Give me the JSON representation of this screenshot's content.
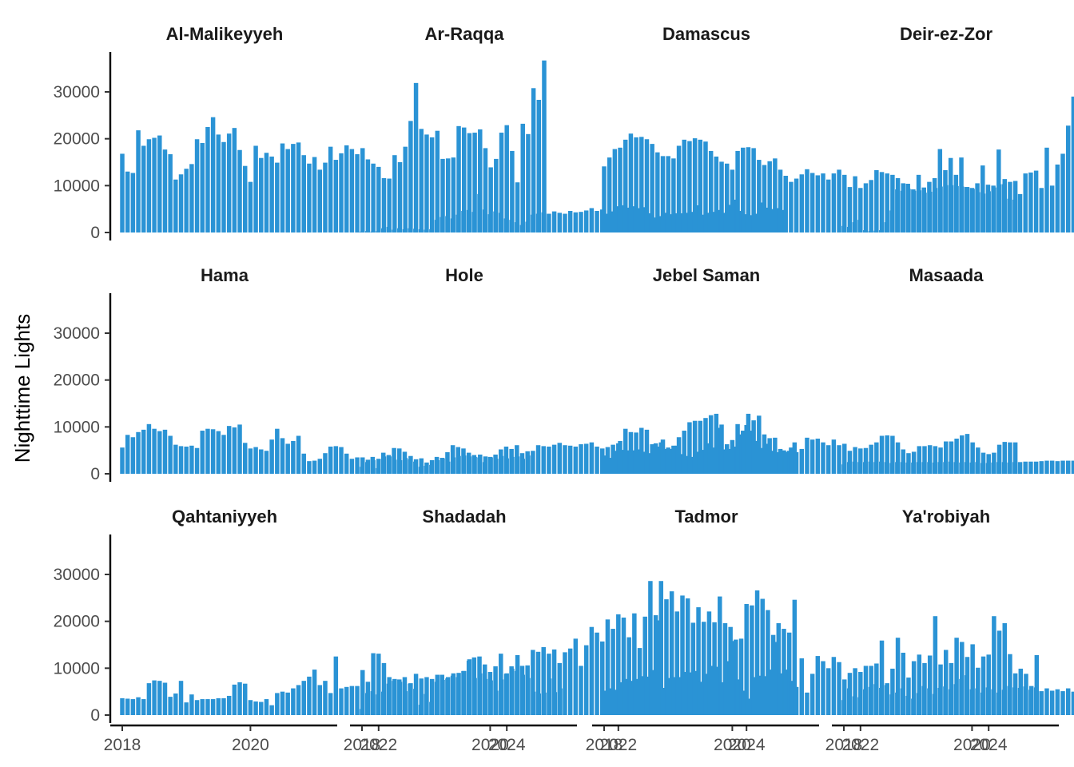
{
  "chart_data": {
    "type": "bar",
    "facet_layout": "4 columns x 3 rows",
    "ylabel": "Nighttime Lights",
    "xlabel": "",
    "x_ticks": [
      "2018",
      "2020",
      "2022",
      "2024"
    ],
    "y_ticks": [
      0,
      10000,
      20000,
      30000
    ],
    "ylim": [
      0,
      38000
    ],
    "x_start": "2018-01",
    "bar_color": "#2a93d5",
    "grid": false,
    "legend": "none",
    "panels": [
      {
        "title": "Al-Malikeyyeh",
        "values": [
          16800,
          13000,
          12700,
          21800,
          18500,
          19900,
          20200,
          20700,
          17700,
          16700,
          11300,
          12400,
          13600,
          14600,
          19900,
          19100,
          22500,
          24600,
          20900,
          19300,
          21100,
          22300,
          17600,
          14200,
          10800,
          18500,
          15900,
          17000,
          16200,
          14900,
          19000,
          17800,
          18900,
          19200,
          16500,
          14700,
          16100,
          13400,
          14900,
          18300,
          15500,
          16900,
          18600,
          17800,
          16700,
          18000,
          15600,
          14700,
          14000,
          11600,
          11500,
          16500,
          15000,
          18300,
          23800,
          31900,
          22100,
          20900,
          20300,
          21700,
          15700,
          15800,
          16000,
          22700,
          22400,
          21200,
          21300,
          22000,
          18000,
          13900,
          15700,
          21300,
          22900,
          17400,
          10700,
          23200,
          21000,
          30800,
          28300,
          36700
        ]
      },
      {
        "title": "Ar-Raqqa",
        "values": [
          200,
          300,
          200,
          300,
          900,
          1200,
          600,
          900,
          700,
          900,
          800,
          700,
          600,
          700,
          2700,
          3300,
          3500,
          3000,
          3800,
          4600,
          4800,
          4400,
          8200,
          4900,
          3900,
          4500,
          4200,
          3000,
          2700,
          2200,
          1600,
          2300,
          3800,
          4000,
          4300,
          4000,
          4500,
          4200,
          4000,
          4600,
          4300,
          4400,
          4700,
          5200,
          4600,
          4900,
          4000,
          4500,
          5600,
          5800,
          5300,
          5600,
          5200,
          5400,
          4100,
          3200,
          3500,
          4200,
          3900,
          4100,
          4100,
          4200,
          4400,
          5800,
          3800,
          4200,
          4400,
          4800,
          4200,
          5900,
          7000,
          4600,
          3900,
          3700,
          4000,
          6400,
          5300,
          5000,
          5200,
          4800
        ]
      },
      {
        "title": "Damascus",
        "values": [
          14100,
          16000,
          17800,
          18100,
          19800,
          21100,
          20300,
          20400,
          19900,
          18900,
          17100,
          16300,
          16300,
          15800,
          18500,
          19800,
          19500,
          20100,
          19800,
          19400,
          17400,
          16200,
          15100,
          14700,
          13400,
          17400,
          18100,
          18200,
          18000,
          15500,
          14400,
          15200,
          15800,
          13400,
          12100,
          10800,
          11500,
          12400,
          13500,
          12700,
          12200,
          12600,
          11300,
          12600,
          13400,
          12300,
          9700,
          12000,
          9500,
          10500,
          11200,
          13300,
          12900,
          12600,
          12300,
          11600,
          10500,
          9300,
          8900,
          9000,
          8500,
          8700,
          9500,
          9800,
          10100,
          10100,
          9900,
          9800,
          9700,
          9300,
          8600,
          8300,
          8800,
          9600,
          10300,
          11400,
          10800,
          11000
        ]
      },
      {
        "title": "Deir-ez-Zor",
        "values": [
          1400,
          1200,
          2200,
          2700,
          500,
          300,
          400,
          500,
          2200,
          4700,
          9200,
          8900,
          10400,
          9200,
          12300,
          9600,
          10800,
          11600,
          17800,
          13300,
          15900,
          12300,
          16000,
          9700,
          9500,
          10500,
          14300,
          10200,
          10000,
          17700,
          10300,
          7200,
          7000,
          8200,
          12600,
          12800,
          13200,
          9500,
          18100,
          10000,
          14500,
          16800,
          22800,
          29000,
          21700,
          19600,
          17800,
          16300,
          19600,
          24400,
          21500,
          14000,
          21600,
          21900,
          21500,
          18600,
          25800,
          21700,
          23300,
          19900,
          17900,
          14700,
          14000,
          14600,
          17200,
          16400,
          18100,
          17300,
          15000,
          14700,
          14600,
          16600,
          12900,
          11800,
          11400,
          16300,
          11200,
          8000,
          17300,
          11500
        ]
      },
      {
        "title": "Hama",
        "values": [
          5600,
          8300,
          7800,
          8900,
          9400,
          10600,
          9600,
          9100,
          9400,
          8100,
          6200,
          5900,
          5800,
          6000,
          5500,
          9200,
          9600,
          9500,
          9100,
          8300,
          10200,
          9900,
          10500,
          6600,
          5400,
          5700,
          5200,
          4900,
          7300,
          9600,
          7600,
          6400,
          7000,
          8100,
          4300,
          2700,
          2800,
          3200,
          4400,
          5800,
          5900,
          5700,
          4300,
          3200,
          3500,
          3500,
          3000,
          2900,
          3200,
          3700,
          3700,
          3000,
          2900,
          3400,
          3800,
          3100,
          3300,
          2400,
          2900,
          2900,
          3300,
          2600,
          3500,
          3800,
          3900,
          3700,
          3600,
          4100,
          3700,
          3500,
          3200,
          3800,
          3300,
          3600,
          3700,
          3200,
          3900
        ]
      },
      {
        "title": "Hole",
        "values": [
          1500,
          2500,
          3600,
          1200,
          4500,
          4000,
          5500,
          5400,
          4700,
          3100,
          2600,
          1500,
          1700,
          1900,
          3600,
          3400,
          4600,
          6100,
          5700,
          5400,
          4500,
          4000,
          3500,
          2500,
          3600,
          4100,
          5200,
          5800,
          5300,
          6100,
          4400,
          4800,
          4900,
          6100,
          5900,
          5800,
          6200,
          6600,
          6100,
          6000,
          5800,
          6300,
          6400,
          6700,
          5800,
          5400,
          5700,
          6200,
          6500,
          5100,
          5000,
          5000,
          5200,
          4700,
          4400,
          6500,
          6700,
          5300,
          5300,
          6000,
          4200,
          3800,
          3600,
          4700,
          5100,
          6500,
          5600,
          9800,
          5200,
          5300,
          5800,
          8400,
          10400,
          9200,
          7000,
          5500,
          6400,
          4900,
          4600,
          5000,
          4900,
          6700
        ]
      },
      {
        "title": "Jebel Saman",
        "values": [
          3900,
          3400,
          4900,
          7000,
          9600,
          8900,
          8800,
          9800,
          9400,
          6300,
          5800,
          7300,
          5600,
          6000,
          7800,
          9200,
          11000,
          11300,
          11300,
          11900,
          12500,
          12800,
          10500,
          6300,
          7200,
          10600,
          9200,
          12800,
          11400,
          12400,
          8400,
          7600,
          7700,
          5300,
          4700,
          5600,
          4600,
          5300,
          7700,
          7300,
          7500,
          6700,
          6100,
          7300,
          6100,
          6400,
          4900,
          5700,
          5400,
          5500,
          6200,
          6700,
          8100,
          8200,
          8100,
          6700,
          5200,
          4400,
          4700,
          5900,
          5900,
          6100,
          5900,
          5600,
          6900,
          6900,
          7500,
          8200,
          8500,
          6700,
          5600,
          4500,
          4200,
          4500,
          6200,
          6800,
          6700,
          6700
        ]
      },
      {
        "title": "Masaada",
        "values": [
          2000,
          2500,
          2600,
          2500,
          2500,
          2600,
          2500,
          2600,
          2500,
          2300,
          2500,
          2500,
          2400,
          2400,
          2500,
          2500,
          2500,
          2400,
          2500,
          2500,
          2600,
          2500,
          2400,
          2500,
          2400,
          2500,
          2300,
          2300,
          2400,
          2500,
          2500,
          2400,
          2500,
          2500,
          2600,
          2600,
          2600,
          2700,
          2800,
          2800,
          2700,
          2800,
          2800,
          2800,
          2900,
          2800,
          2700,
          2800,
          2800,
          3000,
          3100,
          2900,
          3000,
          2900,
          3100,
          3200,
          3000,
          3200,
          3100,
          3100,
          3200,
          3400,
          3300,
          3400,
          3300,
          3400,
          3400,
          3600,
          3500,
          3600,
          3600,
          3500,
          3700,
          3600,
          3800,
          3700,
          3800,
          3700,
          3700,
          3900
        ]
      },
      {
        "title": "Qahtaniyyeh",
        "values": [
          3600,
          3500,
          3400,
          3800,
          3400,
          6800,
          7400,
          7300,
          6900,
          3900,
          4600,
          7300,
          2700,
          4400,
          3200,
          3400,
          3400,
          3400,
          3600,
          3600,
          4100,
          6500,
          7000,
          6700,
          3200,
          2900,
          2800,
          3400,
          2100,
          4700,
          5000,
          4800,
          5700,
          6400,
          7300,
          8200,
          9700,
          6400,
          7300,
          4700,
          12500,
          5700,
          6000,
          6200,
          6200,
          9600,
          7100,
          13200,
          13100,
          11100,
          8100,
          7700,
          7100,
          5100,
          6800,
          8800,
          7800,
          8100,
          7700,
          8600,
          7500,
          8100,
          8900,
          9000,
          9400,
          11900,
          7900,
          8900,
          7700,
          7400,
          5200,
          7600,
          8900,
          9900,
          12800,
          8600,
          7900,
          5000,
          4600,
          4800,
          7800,
          4900,
          5700
        ]
      },
      {
        "title": "Shadadah",
        "values": [
          1300,
          4700,
          5100,
          4400,
          5000,
          6700,
          7300,
          7600,
          8100,
          6700,
          5600,
          2200,
          4500,
          2800,
          7100,
          8600,
          7800,
          8400,
          8100,
          9400,
          11600,
          12300,
          12500,
          10800,
          9200,
          10400,
          13100,
          8800,
          10400,
          9400,
          10500,
          10600,
          13900,
          13500,
          14500,
          13100,
          14000,
          11100,
          13400,
          14200,
          16300,
          10500,
          14900,
          18800,
          17600,
          15700,
          20400,
          18400,
          21500,
          20800,
          16600,
          21700,
          14300,
          21000,
          28600,
          21300,
          28600,
          24700,
          26400,
          22100,
          25500,
          24900,
          19700,
          23000,
          19900,
          22100,
          19800,
          25300,
          19600,
          18800,
          16100,
          16300,
          23700,
          23400,
          26600,
          24800,
          22400,
          17100,
          19600,
          18400,
          17600,
          24600
        ]
      },
      {
        "title": "Tadmor",
        "values": [
          5200,
          5700,
          5400,
          7000,
          7700,
          7300,
          7700,
          8300,
          8200,
          9600,
          20200,
          5800,
          7900,
          8100,
          8100,
          9200,
          9100,
          9400,
          7100,
          8800,
          10500,
          10300,
          7000,
          11500,
          15800,
          7600,
          5200,
          3500,
          8100,
          8400,
          8300,
          9700,
          15600,
          8900,
          9700,
          7300,
          6000,
          12100,
          4800,
          8800,
          12600,
          11500,
          10000,
          12400,
          11300,
          7600,
          9000,
          10000,
          9200,
          10500,
          10500,
          11000,
          15900,
          6800,
          9900,
          16500,
          13300,
          8000,
          11500,
          12900,
          11100,
          12700,
          21100,
          10800,
          13900,
          11100,
          16500,
          15600,
          12400,
          15100,
          10100,
          12500,
          12900,
          21100,
          18000,
          19600,
          13000,
          8900,
          9900,
          8800,
          6200,
          12800
        ]
      },
      {
        "title": "Ya'robiyah",
        "values": [
          3200,
          5700,
          4000,
          3800,
          5500,
          6000,
          6600,
          5800,
          6400,
          4400,
          4800,
          5700,
          4100,
          3500,
          4700,
          6200,
          5700,
          4500,
          5800,
          6100,
          5500,
          6600,
          7700,
          8500,
          5500,
          5700,
          4800,
          5900,
          5500,
          4800,
          5400,
          6200,
          5900,
          5800,
          6100,
          5400,
          5900,
          5100,
          5700,
          5200,
          5500,
          5100,
          5700,
          5000,
          5300,
          5100,
          5600,
          4900,
          5400,
          5800,
          5500,
          4100,
          5900,
          6300,
          6000,
          6000,
          5900,
          6400,
          5700,
          3900,
          5200,
          6400,
          6100,
          5100,
          4400,
          4800,
          5900,
          5800,
          4900,
          5900,
          5000,
          5300,
          7200,
          6500,
          7000,
          6100,
          4600,
          4300,
          3900,
          9200,
          7700,
          6700,
          6900
        ]
      }
    ]
  }
}
